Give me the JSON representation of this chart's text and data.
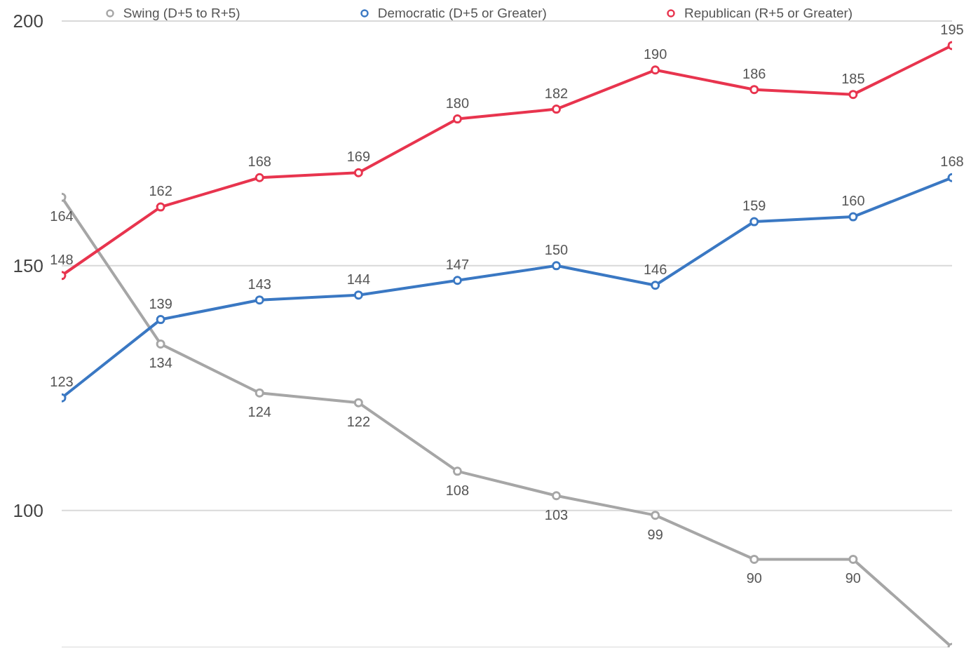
{
  "chart_data": {
    "type": "line",
    "categories": [
      null,
      null,
      null,
      null,
      null,
      null,
      null,
      null,
      null,
      null
    ],
    "series": [
      {
        "name": "Swing (D+5 to R+5)",
        "color": "#a6a6a6",
        "values": [
          164,
          134,
          124,
          122,
          108,
          103,
          99,
          90,
          90,
          72
        ],
        "value_labels": [
          "164",
          "134",
          "124",
          "122",
          "108",
          "103",
          "99",
          "90",
          "90",
          null
        ]
      },
      {
        "name": "Democratic (D+5 or Greater)",
        "color": "#3a78c3",
        "values": [
          123,
          139,
          143,
          144,
          147,
          150,
          146,
          159,
          160,
          168
        ],
        "value_labels": [
          "123",
          "139",
          "143",
          "144",
          "147",
          "150",
          "146",
          "159",
          "160",
          "168"
        ]
      },
      {
        "name": "Republican (R+5 or Greater)",
        "color": "#e8344e",
        "values": [
          148,
          162,
          168,
          169,
          180,
          182,
          190,
          186,
          185,
          195
        ],
        "value_labels": [
          "148",
          "162",
          "168",
          "169",
          "180",
          "182",
          "190",
          "186",
          "185",
          "195"
        ]
      }
    ],
    "ylim": [
      72,
      200
    ],
    "yticks": [
      100,
      150,
      200
    ],
    "grid": "y",
    "legend": "top",
    "marker": "circle",
    "line_style": "solid",
    "tick_labels": "y"
  }
}
